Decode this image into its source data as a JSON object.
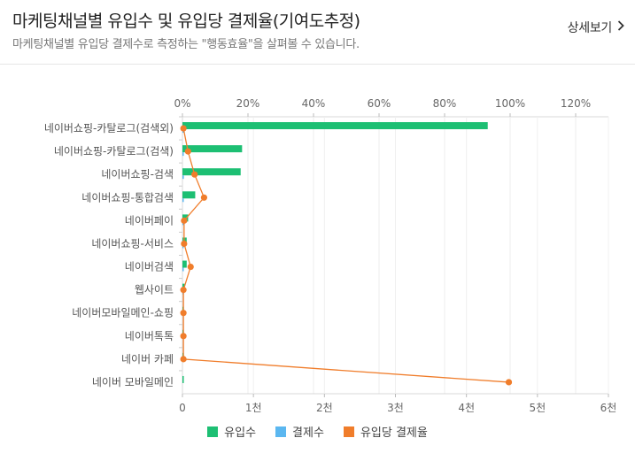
{
  "header": {
    "title": "마케팅채널별 유입수 및 유입당 결제율(기여도추정)",
    "subtitle": "마케팅채널별 유입당 결제수로 측정하는 \"행동효율\"을 살펴볼 수 있습니다.",
    "more_label": "상세보기",
    "more_icon": "chevron-right-icon"
  },
  "colors": {
    "inflow": "#1dbf73",
    "payments": "#5bb7f0",
    "rate": "#f07d2b"
  },
  "chart_data": {
    "type": "bar",
    "orientation": "horizontal",
    "categories": [
      "네이버쇼핑-카탈로그(검색외)",
      "네이버쇼핑-카탈로그(검색)",
      "네이버쇼핑-검색",
      "네이버쇼핑-통합검색",
      "네이버페이",
      "네이버쇼핑-서비스",
      "네이버검색",
      "웹사이트",
      "네이버모바일메인-쇼핑",
      "네이버톡톡",
      "네이버 카페",
      "네이버 모바일메인"
    ],
    "series": [
      {
        "name": "유입수",
        "type": "bar",
        "axis": "bottom",
        "values": [
          4300,
          840,
          820,
          180,
          80,
          60,
          60,
          30,
          5,
          4,
          3,
          3
        ]
      },
      {
        "name": "결제수",
        "type": "bar",
        "axis": "bottom",
        "values": [
          25,
          15,
          20,
          10,
          3,
          2,
          3,
          2,
          0,
          0,
          0,
          0
        ]
      },
      {
        "name": "유입당 결제율",
        "type": "line",
        "axis": "top",
        "values": [
          0.3,
          1.7,
          3.7,
          6.6,
          0.5,
          0.5,
          2.5,
          0.3,
          0.3,
          0.3,
          0.3,
          99.6
        ]
      }
    ],
    "x_bottom": {
      "ticks": [
        0,
        1000,
        2000,
        3000,
        4000,
        5000,
        6000
      ],
      "tick_labels": [
        "0",
        "1천",
        "2천",
        "3천",
        "4천",
        "5천",
        "6천"
      ],
      "range": [
        0,
        6000
      ]
    },
    "x_top": {
      "ticks": [
        0,
        20,
        40,
        60,
        80,
        100,
        120
      ],
      "tick_labels": [
        "0%",
        "20%",
        "40%",
        "60%",
        "80%",
        "100%",
        "120%"
      ],
      "range": [
        0,
        130
      ]
    },
    "grid": true,
    "legend": "bottom-center"
  }
}
